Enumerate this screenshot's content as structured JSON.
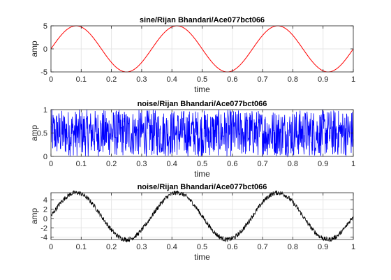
{
  "chart_data": [
    {
      "type": "line",
      "title": "sine/Rijan Bhandari/Ace077bct066",
      "xlabel": "time",
      "ylabel": "amp",
      "xlim": [
        0,
        1
      ],
      "ylim": [
        -5,
        5
      ],
      "xticks": [
        0,
        0.1,
        0.2,
        0.3,
        0.4,
        0.5,
        0.6,
        0.7,
        0.8,
        0.9,
        1
      ],
      "xtick_labels": [
        "0",
        "0.1",
        "0.2",
        "0.3",
        "0.4",
        "0.5",
        "0.6",
        "0.7",
        "0.8",
        "0.9",
        "1"
      ],
      "yticks": [
        -5,
        0,
        5
      ],
      "ytick_labels": [
        "-5",
        "0",
        "5"
      ],
      "grid": true,
      "color": "#ff0000",
      "series": [
        {
          "kind": "sine",
          "amplitude": 5,
          "frequency_hz": 3,
          "noise": 0
        }
      ]
    },
    {
      "type": "line",
      "title": "noise/Rijan Bhandari/Ace077bct066",
      "xlabel": "time",
      "ylabel": "amp",
      "xlim": [
        0,
        1
      ],
      "ylim": [
        0,
        1
      ],
      "xticks": [
        0,
        0.1,
        0.2,
        0.3,
        0.4,
        0.5,
        0.6,
        0.7,
        0.8,
        0.9,
        1
      ],
      "xtick_labels": [
        "0",
        "0.1",
        "0.2",
        "0.3",
        "0.4",
        "0.5",
        "0.6",
        "0.7",
        "0.8",
        "0.9",
        "1"
      ],
      "yticks": [
        0,
        0.5,
        1
      ],
      "ytick_labels": [
        "0",
        "0.5",
        "1"
      ],
      "grid": true,
      "color": "#0000ff",
      "series": [
        {
          "kind": "uniform-noise",
          "min": 0,
          "max": 1
        }
      ]
    },
    {
      "type": "line",
      "title": "noise/Rijan Bhandari/Ace077bct066",
      "xlabel": "time",
      "ylabel": "amp",
      "xlim": [
        0,
        1
      ],
      "ylim": [
        -4.5,
        5.5
      ],
      "xticks": [
        0,
        0.1,
        0.2,
        0.3,
        0.4,
        0.5,
        0.6,
        0.7,
        0.8,
        0.9,
        1
      ],
      "xtick_labels": [
        "0",
        "0.1",
        "0.2",
        "0.3",
        "0.4",
        "0.5",
        "0.6",
        "0.7",
        "0.8",
        "0.9",
        "1"
      ],
      "yticks": [
        -4,
        -2,
        0,
        2,
        4
      ],
      "ytick_labels": [
        "-4",
        "-2",
        "0",
        "2",
        "4"
      ],
      "grid": true,
      "color": "#000000",
      "series": [
        {
          "kind": "sine-plus-noise",
          "amplitude": 5,
          "frequency_hz": 3,
          "noise_min": 0,
          "noise_max": 1
        }
      ]
    }
  ]
}
